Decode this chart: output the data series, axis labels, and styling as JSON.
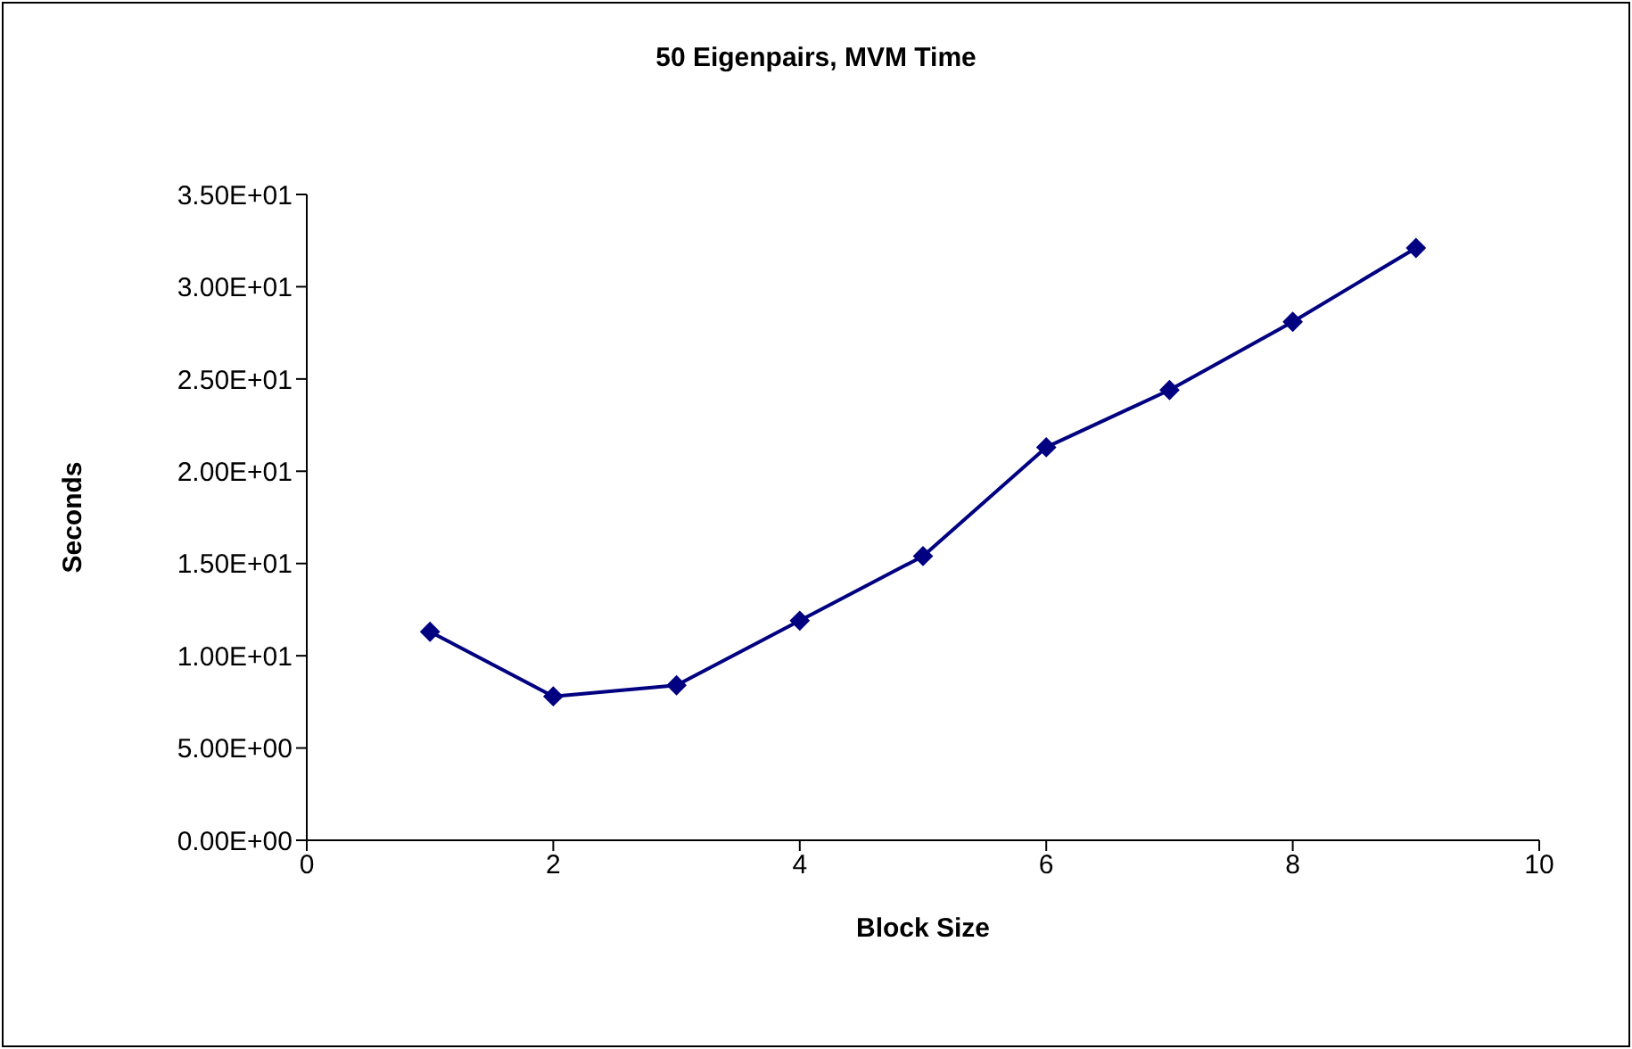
{
  "chart_data": {
    "type": "line",
    "title": "50 Eigenpairs, MVM Time",
    "xlabel": "Block Size",
    "ylabel": "Seconds",
    "x": [
      1,
      2,
      3,
      4,
      5,
      6,
      7,
      8,
      9
    ],
    "series": [
      {
        "color": "#000080",
        "values": [
          11.3,
          7.8,
          8.4,
          11.9,
          15.4,
          21.3,
          24.4,
          28.1,
          32.1
        ]
      }
    ],
    "xlim": [
      0,
      10
    ],
    "xticks": [
      0,
      2,
      4,
      6,
      8,
      10
    ],
    "ylim": [
      0,
      35
    ],
    "yticks": [
      {
        "value": 0,
        "label": "0.00E+00"
      },
      {
        "value": 5,
        "label": "5.00E+00"
      },
      {
        "value": 10,
        "label": "1.00E+01"
      },
      {
        "value": 15,
        "label": "1.50E+01"
      },
      {
        "value": 20,
        "label": "2.00E+01"
      },
      {
        "value": 25,
        "label": "2.50E+01"
      },
      {
        "value": 30,
        "label": "3.00E+01"
      },
      {
        "value": 35,
        "label": "3.50E+01"
      }
    ],
    "marker": "diamond",
    "grid": false,
    "legend": false
  }
}
